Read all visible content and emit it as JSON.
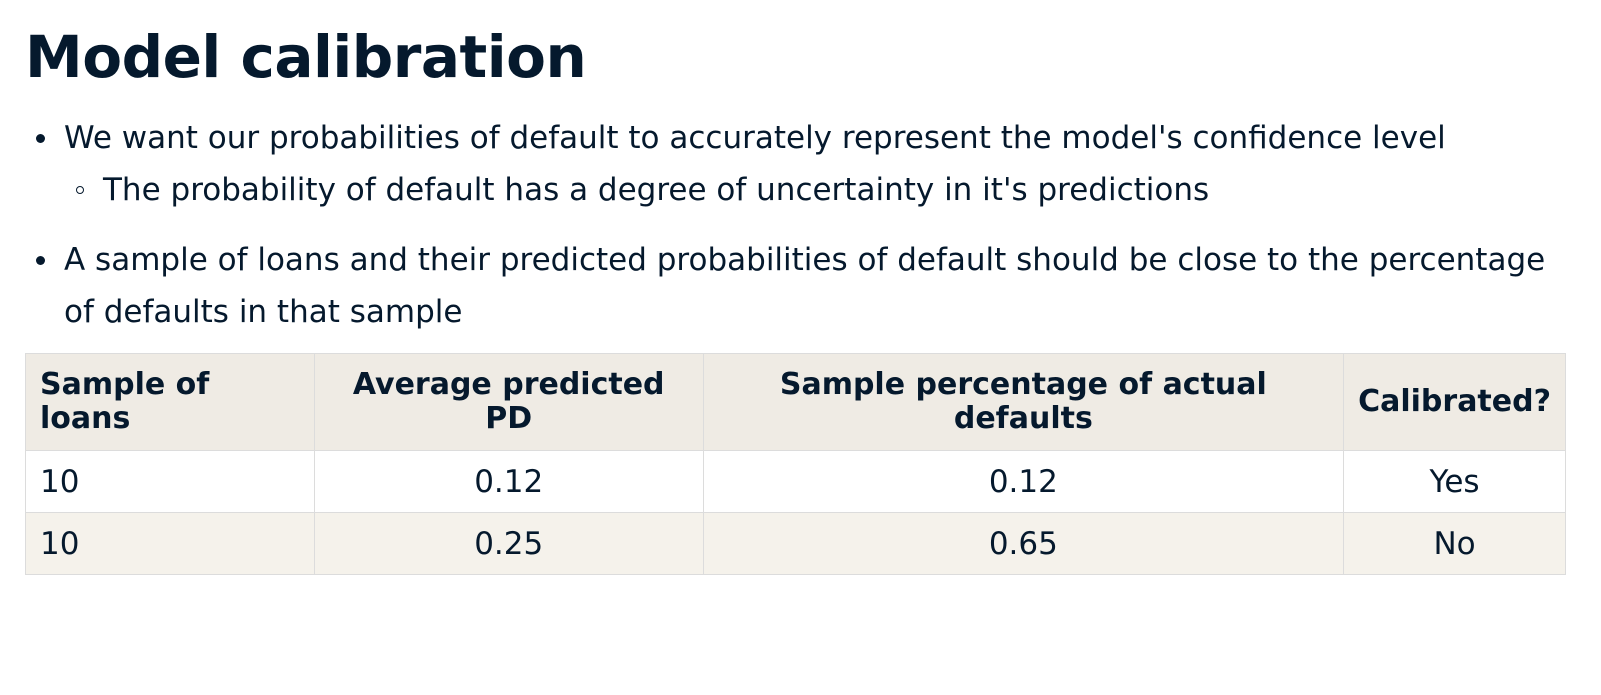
{
  "slide": {
    "title": "Model calibration"
  },
  "bullets": {
    "b1": "We want our probabilities of default to accurately represent the model's confidence level",
    "b1_sub": "The probability of default has a degree of uncertainty in it's predictions",
    "b2": "A sample of loans and their predicted probabilities of default should be close to the percentage of defaults in that sample"
  },
  "table": {
    "headers": [
      "Sample of loans",
      "Average predicted PD",
      "Sample percentage of actual defaults",
      "Calibrated?"
    ],
    "rows": [
      [
        "10",
        "0.12",
        "0.12",
        "Yes"
      ],
      [
        "10",
        "0.25",
        "0.65",
        "No"
      ]
    ]
  },
  "colors": {
    "text": "#05192d",
    "header_bg": "#efebe4",
    "alt_row_bg": "#f5f2eb",
    "border": "#dcdcdc"
  }
}
